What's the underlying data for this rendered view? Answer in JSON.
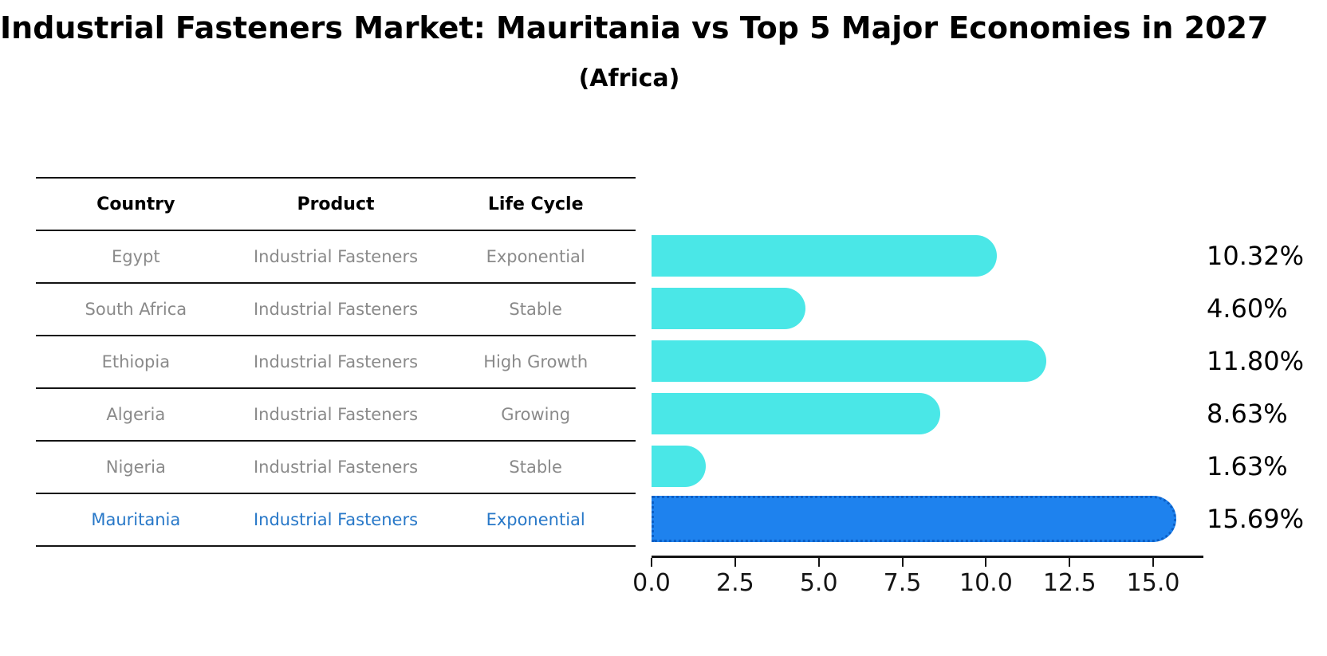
{
  "header": {
    "title": "Industrial Fasteners Market: Mauritania vs Top 5 Major Economies in 2027",
    "subtitle": "(Africa)"
  },
  "table": {
    "columns": [
      "Country",
      "Product",
      "Life Cycle"
    ],
    "rows": [
      {
        "country": "Egypt",
        "product": "Industrial Fasteners",
        "life_cycle": "Exponential",
        "highlight": false
      },
      {
        "country": "South Africa",
        "product": "Industrial Fasteners",
        "life_cycle": "Stable",
        "highlight": false
      },
      {
        "country": "Ethiopia",
        "product": "Industrial Fasteners",
        "life_cycle": "High Growth",
        "highlight": false
      },
      {
        "country": "Algeria",
        "product": "Industrial Fasteners",
        "life_cycle": "Growing",
        "highlight": false
      },
      {
        "country": "Nigeria",
        "product": "Industrial Fasteners",
        "life_cycle": "Stable",
        "highlight": false
      },
      {
        "country": "Mauritania",
        "product": "Industrial Fasteners",
        "life_cycle": "Exponential",
        "highlight": true
      }
    ]
  },
  "chart_data": {
    "type": "bar",
    "orientation": "horizontal",
    "title": "Industrial Fasteners Market: Mauritania vs Top 5 Major Economies in 2027",
    "subtitle": "(Africa)",
    "categories": [
      "Egypt",
      "South Africa",
      "Ethiopia",
      "Algeria",
      "Nigeria",
      "Mauritania"
    ],
    "values": [
      10.32,
      4.6,
      11.8,
      8.63,
      1.63,
      15.69
    ],
    "value_labels": [
      "10.32%",
      "4.60%",
      "11.80%",
      "8.63%",
      "1.63%",
      "15.69%"
    ],
    "xlabel": "",
    "ylabel": "",
    "xlim": [
      0,
      16.5
    ],
    "xticks": [
      0,
      2.5,
      5,
      7.5,
      10,
      12.5,
      15
    ],
    "xtick_labels": [
      "0.0",
      "2.5",
      "5.0",
      "7.5",
      "10.0",
      "12.5",
      "15.0"
    ],
    "grid": false,
    "legend": false,
    "highlight_index": 5
  },
  "colors": {
    "bar": "#4ae7e7",
    "highlight_fill": "#1e82ee",
    "highlight_border": "#0b5fc6",
    "highlight_text": "#2878c8",
    "table_text": "#8a8a8a",
    "axis": "#141414"
  }
}
